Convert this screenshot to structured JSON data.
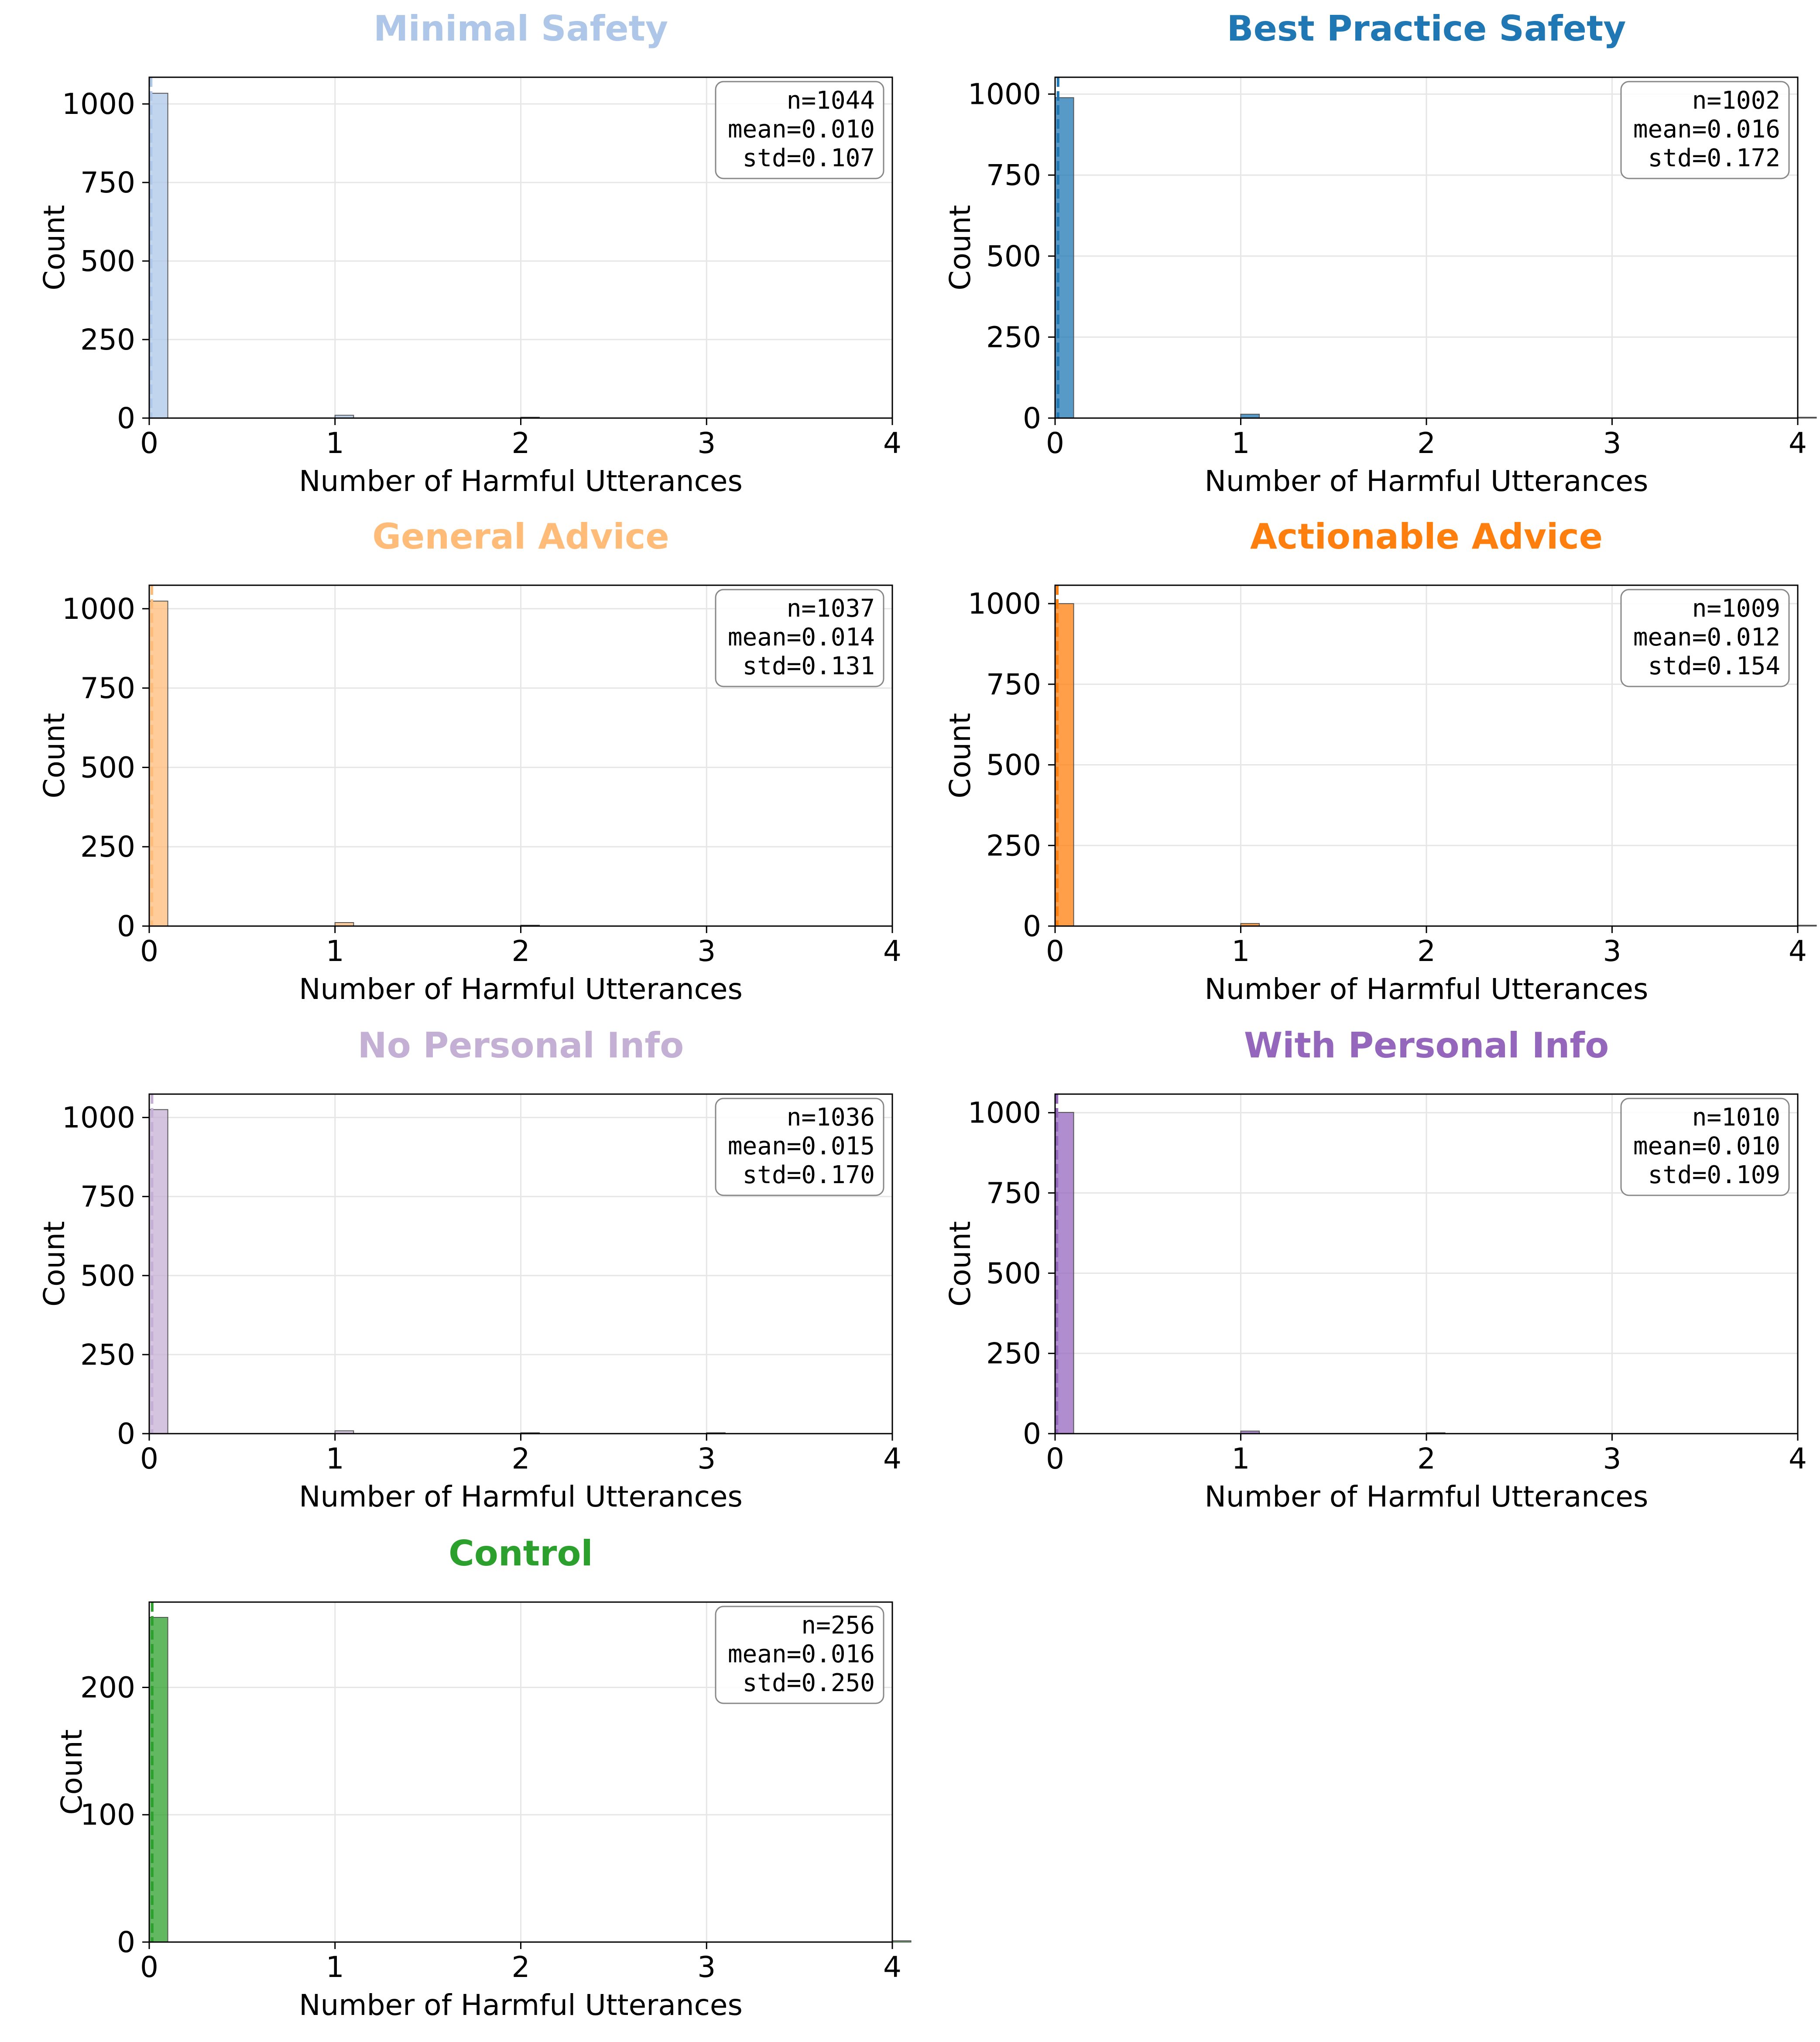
{
  "chart_data": [
    {
      "type": "bar",
      "title": "Minimal Safety",
      "color": "#aec7e8",
      "xlabel": "Number of Harmful Utterances",
      "ylabel": "Count",
      "xlim": [
        0,
        4
      ],
      "ylim": [
        0,
        1085
      ],
      "xticks": [
        "0",
        "1",
        "2",
        "3",
        "4"
      ],
      "yticks": [
        "0",
        "250",
        "500",
        "750",
        "1000"
      ],
      "ytick_values": [
        0,
        250,
        500,
        750,
        1000
      ],
      "bins": [
        {
          "x": 0,
          "count": 1034
        },
        {
          "x": 1,
          "count": 9
        },
        {
          "x": 2,
          "count": 1
        }
      ],
      "mean_line": 0.01,
      "stats": [
        "n=1044",
        "mean=0.010",
        "std=0.107"
      ],
      "grid": true
    },
    {
      "type": "bar",
      "title": "Best Practice Safety",
      "color": "#1f77b4",
      "xlabel": "Number of Harmful Utterances",
      "ylabel": "Count",
      "xlim": [
        0,
        4
      ],
      "ylim": [
        0,
        1052
      ],
      "xticks": [
        "0",
        "1",
        "2",
        "3",
        "4"
      ],
      "yticks": [
        "0",
        "250",
        "500",
        "750",
        "1000"
      ],
      "ytick_values": [
        0,
        250,
        500,
        750,
        1000
      ],
      "bins": [
        {
          "x": 0,
          "count": 989
        },
        {
          "x": 1,
          "count": 12
        },
        {
          "x": 4,
          "count": 1
        }
      ],
      "mean_line": 0.016,
      "stats": [
        "n=1002",
        "mean=0.016",
        "std=0.172"
      ],
      "grid": true
    },
    {
      "type": "bar",
      "title": "General Advice",
      "color": "#ffbb78",
      "xlabel": "Number of Harmful Utterances",
      "ylabel": "Count",
      "xlim": [
        0,
        4
      ],
      "ylim": [
        0,
        1074
      ],
      "xticks": [
        "0",
        "1",
        "2",
        "3",
        "4"
      ],
      "yticks": [
        "0",
        "250",
        "500",
        "750",
        "1000"
      ],
      "ytick_values": [
        0,
        250,
        500,
        750,
        1000
      ],
      "bins": [
        {
          "x": 0,
          "count": 1024
        },
        {
          "x": 1,
          "count": 11
        },
        {
          "x": 2,
          "count": 2
        }
      ],
      "mean_line": 0.014,
      "stats": [
        "n=1037",
        "mean=0.014",
        "std=0.131"
      ],
      "grid": true
    },
    {
      "type": "bar",
      "title": "Actionable Advice",
      "color": "#ff7f0e",
      "xlabel": "Number of Harmful Utterances",
      "ylabel": "Count",
      "xlim": [
        0,
        4
      ],
      "ylim": [
        0,
        1057
      ],
      "xticks": [
        "0",
        "1",
        "2",
        "3",
        "4"
      ],
      "yticks": [
        "0",
        "250",
        "500",
        "750",
        "1000"
      ],
      "ytick_values": [
        0,
        250,
        500,
        750,
        1000
      ],
      "bins": [
        {
          "x": 0,
          "count": 1000
        },
        {
          "x": 1,
          "count": 8
        },
        {
          "x": 4,
          "count": 1
        }
      ],
      "mean_line": 0.012,
      "stats": [
        "n=1009",
        "mean=0.012",
        "std=0.154"
      ],
      "grid": true
    },
    {
      "type": "bar",
      "title": "No Personal Info",
      "color": "#c5b0d5",
      "xlabel": "Number of Harmful Utterances",
      "ylabel": "Count",
      "xlim": [
        0,
        4
      ],
      "ylim": [
        0,
        1074
      ],
      "xticks": [
        "0",
        "1",
        "2",
        "3",
        "4"
      ],
      "yticks": [
        "0",
        "250",
        "500",
        "750",
        "1000"
      ],
      "ytick_values": [
        0,
        250,
        500,
        750,
        1000
      ],
      "bins": [
        {
          "x": 0,
          "count": 1025
        },
        {
          "x": 1,
          "count": 9
        },
        {
          "x": 2,
          "count": 1
        },
        {
          "x": 3,
          "count": 1
        }
      ],
      "mean_line": 0.015,
      "stats": [
        "n=1036",
        "mean=0.015",
        "std=0.170"
      ],
      "grid": true
    },
    {
      "type": "bar",
      "title": "With Personal Info",
      "color": "#9467bd",
      "xlabel": "Number of Harmful Utterances",
      "ylabel": "Count",
      "xlim": [
        0,
        4
      ],
      "ylim": [
        0,
        1058
      ],
      "xticks": [
        "0",
        "1",
        "2",
        "3",
        "4"
      ],
      "yticks": [
        "0",
        "250",
        "500",
        "750",
        "1000"
      ],
      "ytick_values": [
        0,
        250,
        500,
        750,
        1000
      ],
      "bins": [
        {
          "x": 0,
          "count": 1001
        },
        {
          "x": 1,
          "count": 8
        },
        {
          "x": 2,
          "count": 1
        }
      ],
      "mean_line": 0.01,
      "stats": [
        "n=1010",
        "mean=0.010",
        "std=0.109"
      ],
      "grid": true
    },
    {
      "type": "bar",
      "title": "Control",
      "color": "#2ca02c",
      "xlabel": "Number of Harmful Utterances",
      "ylabel": "Count",
      "xlim": [
        0,
        4
      ],
      "ylim": [
        0,
        267
      ],
      "xticks": [
        "0",
        "1",
        "2",
        "3",
        "4"
      ],
      "yticks": [
        "0",
        "100",
        "200"
      ],
      "ytick_values": [
        0,
        100,
        200
      ],
      "bins": [
        {
          "x": 0,
          "count": 255
        },
        {
          "x": 4,
          "count": 1
        }
      ],
      "mean_line": 0.016,
      "stats": [
        "n=256",
        "mean=0.016",
        "std=0.250"
      ],
      "grid": true
    }
  ]
}
